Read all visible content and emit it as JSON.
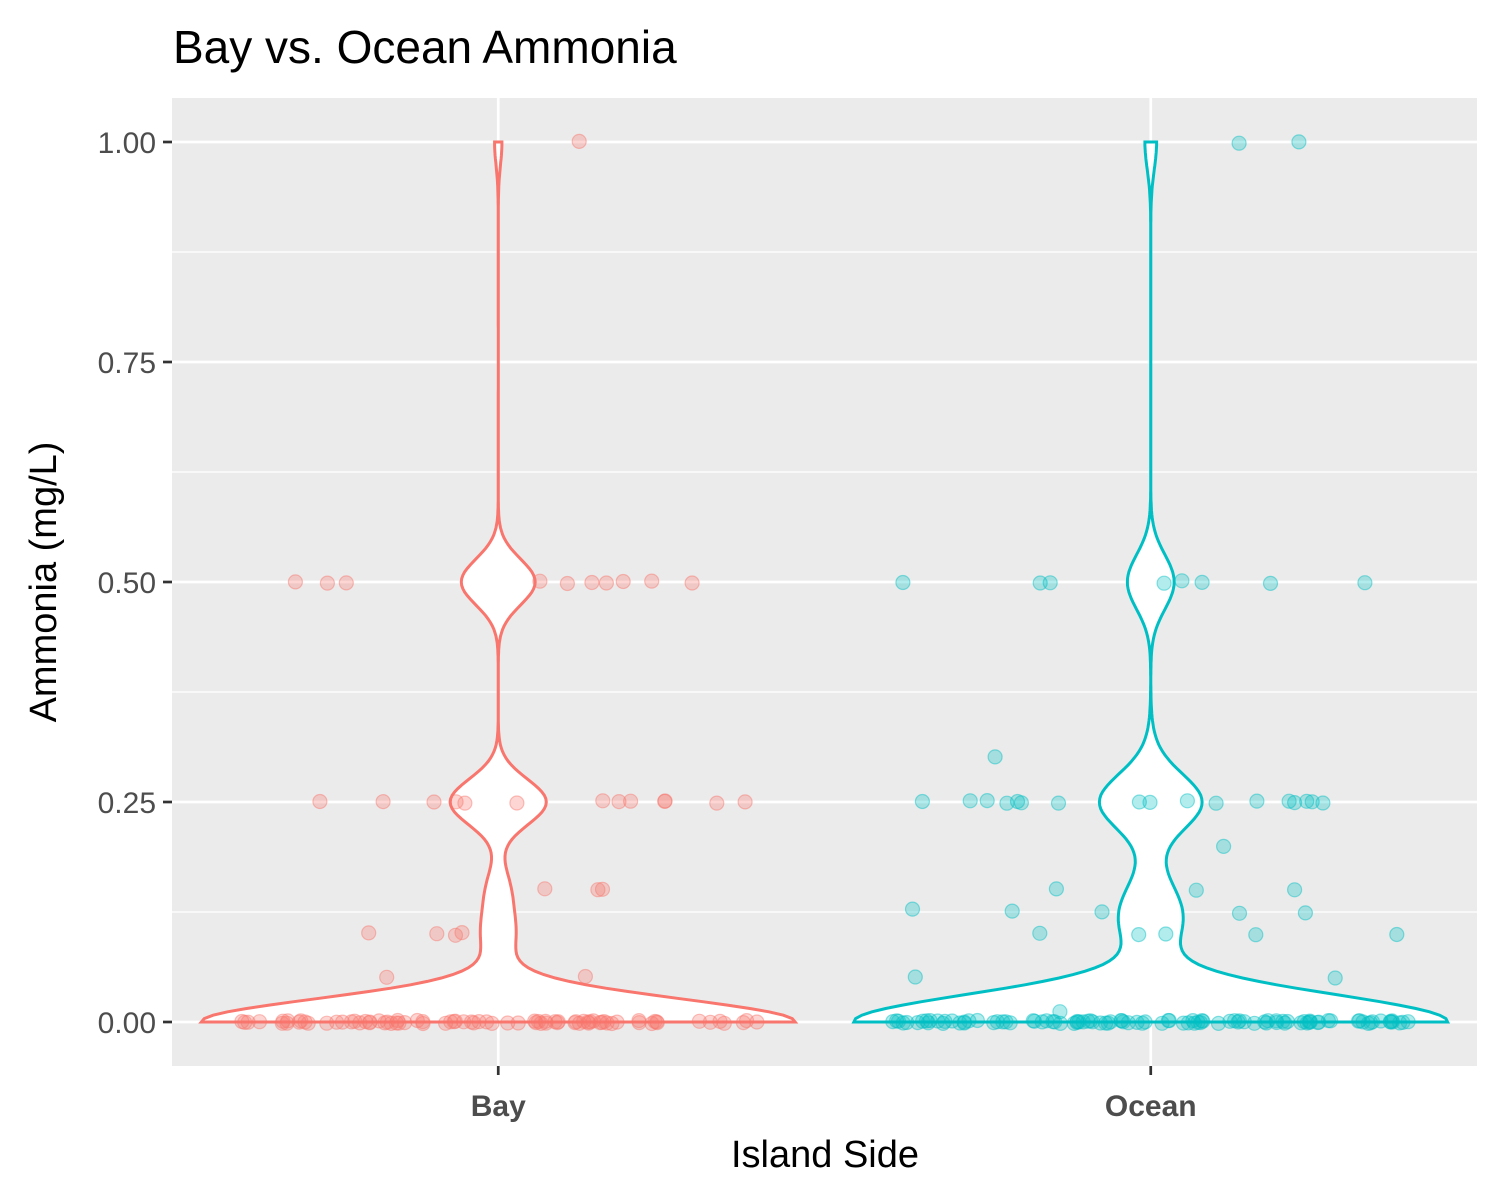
{
  "chart_data": {
    "type": "violin",
    "title": "Bay vs. Ocean Ammonia",
    "xlabel": "Island Side",
    "ylabel": "Ammonia (mg/L)",
    "categories": [
      "Bay",
      "Ocean"
    ],
    "y_ticks": [
      "0.00",
      "0.25",
      "0.50",
      "0.75",
      "1.00"
    ],
    "ylim": [
      -0.05,
      1.05
    ],
    "grid": true,
    "legend": "none",
    "background": "#ebebeb",
    "gridline_color": "#ffffff",
    "series": [
      {
        "category": "Bay",
        "color": "#F8766D",
        "values": [
          1.0,
          0.5,
          0.5,
          0.5,
          0.5,
          0.5,
          0.5,
          0.5,
          0.5,
          0.5,
          0.5,
          0.25,
          0.25,
          0.25,
          0.25,
          0.25,
          0.25,
          0.25,
          0.25,
          0.25,
          0.25,
          0.25,
          0.25,
          0.25,
          0.15,
          0.15,
          0.15,
          0.1,
          0.1,
          0.1,
          0.1,
          0.05,
          0.05,
          0,
          0,
          0,
          0,
          0,
          0,
          0,
          0,
          0,
          0,
          0,
          0,
          0,
          0,
          0,
          0,
          0,
          0,
          0,
          0,
          0,
          0,
          0,
          0,
          0,
          0,
          0,
          0,
          0,
          0,
          0,
          0,
          0,
          0,
          0,
          0,
          0,
          0,
          0,
          0,
          0,
          0,
          0,
          0,
          0,
          0,
          0,
          0,
          0,
          0,
          0,
          0,
          0,
          0,
          0,
          0,
          0,
          0,
          0,
          0,
          0,
          0,
          0,
          0,
          0,
          0,
          0,
          0,
          0,
          0,
          0,
          0,
          0,
          0,
          0,
          0,
          0,
          0,
          0,
          0
        ]
      },
      {
        "category": "Ocean",
        "color": "#00BFC4",
        "values": [
          1.0,
          1.0,
          0.5,
          0.5,
          0.5,
          0.5,
          0.5,
          0.5,
          0.5,
          0.5,
          0.3,
          0.25,
          0.25,
          0.25,
          0.25,
          0.25,
          0.25,
          0.25,
          0.25,
          0.25,
          0.25,
          0.25,
          0.25,
          0.25,
          0.25,
          0.25,
          0.25,
          0.25,
          0.2,
          0.15,
          0.15,
          0.15,
          0.13,
          0.125,
          0.125,
          0.125,
          0.125,
          0.1,
          0.1,
          0.1,
          0.1,
          0.1,
          0.05,
          0.05,
          0.01,
          0,
          0,
          0,
          0,
          0,
          0,
          0,
          0,
          0,
          0,
          0,
          0,
          0,
          0,
          0,
          0,
          0,
          0,
          0,
          0,
          0,
          0,
          0,
          0,
          0,
          0,
          0,
          0,
          0,
          0,
          0,
          0,
          0,
          0,
          0,
          0,
          0,
          0,
          0,
          0,
          0,
          0,
          0,
          0,
          0,
          0,
          0,
          0,
          0,
          0,
          0,
          0,
          0,
          0,
          0,
          0,
          0,
          0,
          0,
          0,
          0,
          0,
          0,
          0,
          0,
          0,
          0,
          0,
          0,
          0,
          0,
          0,
          0,
          0,
          0,
          0,
          0,
          0,
          0,
          0,
          0,
          0,
          0,
          0,
          0,
          0,
          0,
          0,
          0,
          0,
          0,
          0,
          0,
          0,
          0,
          0,
          0,
          0,
          0,
          0
        ]
      }
    ]
  }
}
